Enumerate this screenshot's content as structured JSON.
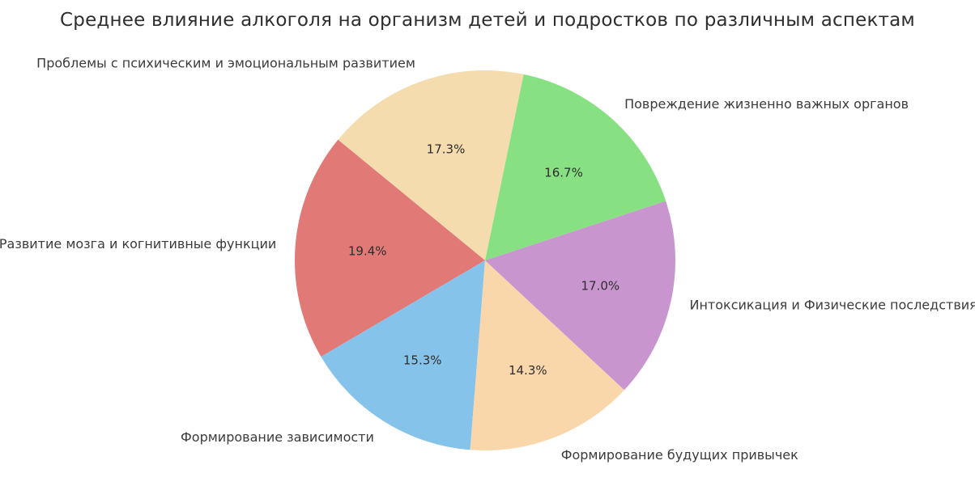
{
  "page": {
    "background_color": "#ffffff"
  },
  "chart_data": {
    "type": "pie",
    "title": "Среднее влияние алкоголя на организм детей и подростков по различным аспектам",
    "legend": "none",
    "direction": "counterclockwise",
    "start_angle_deg": 18.2,
    "slices": [
      {
        "label": "Повреждение жизненно важных органов",
        "value": 16.7,
        "pct_label": "16.7%",
        "color": "#87e183"
      },
      {
        "label": "Проблемы с психическим и эмоциональным развитием",
        "value": 17.3,
        "pct_label": "17.3%",
        "color": "#f5dcae"
      },
      {
        "label": "Развитие мозга и когнитивные функции",
        "value": 19.4,
        "pct_label": "19.4%",
        "color": "#e17a77"
      },
      {
        "label": "Формирование зависимости",
        "value": 15.3,
        "pct_label": "15.3%",
        "color": "#85c3ea"
      },
      {
        "label": "Формирование будущих привычек",
        "value": 14.3,
        "pct_label": "14.3%",
        "color": "#fad6ab"
      },
      {
        "label": "Интоксикация и Физические последствия",
        "value": 17.0,
        "pct_label": "17.0%",
        "color": "#c995cf"
      }
    ]
  }
}
